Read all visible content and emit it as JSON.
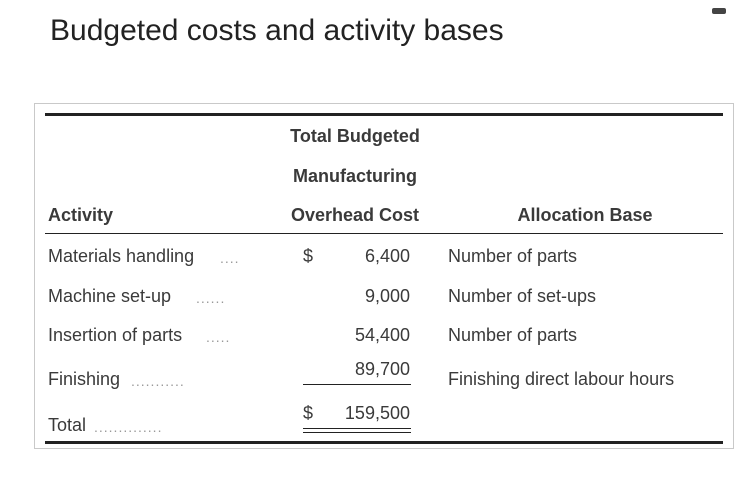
{
  "title": "Budgeted costs and activity bases",
  "table": {
    "headers": {
      "activity": "Activity",
      "cost_line1": "Total Budgeted",
      "cost_line2": "Manufacturing",
      "cost_line3": "Overhead Cost",
      "base": "Allocation Base"
    },
    "rows": [
      {
        "activity": "Materials handling",
        "leader": "....",
        "currency": "$",
        "cost": "6,400",
        "base": "Number of parts"
      },
      {
        "activity": "Machine set-up",
        "leader": "......",
        "currency": "",
        "cost": "9,000",
        "base": "Number of set-ups"
      },
      {
        "activity": "Insertion of parts",
        "leader": ".....",
        "currency": "",
        "cost": "54,400",
        "base": "Number of parts"
      },
      {
        "activity": "Finishing",
        "leader": "...........",
        "currency": "",
        "cost": "89,700",
        "base": "Finishing direct labour hours"
      }
    ],
    "total": {
      "label": "Total",
      "leader": "..............",
      "currency": "$",
      "cost": "159,500"
    }
  }
}
